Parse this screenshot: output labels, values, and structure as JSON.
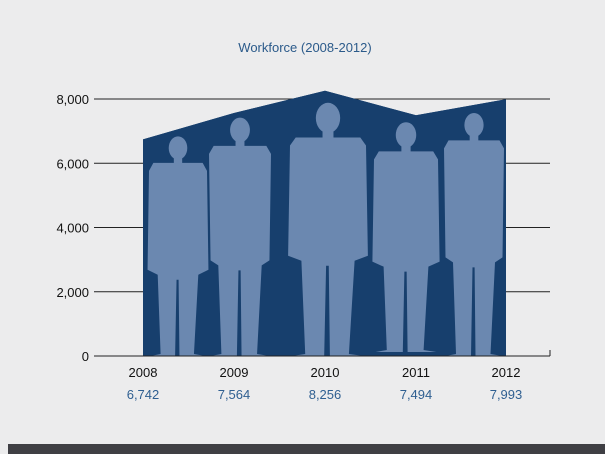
{
  "chart_data": {
    "type": "area",
    "title": "Workforce (2008-2012)",
    "xlabel": "",
    "ylabel": "",
    "categories": [
      "2008",
      "2009",
      "2010",
      "2011",
      "2012"
    ],
    "values": [
      6742,
      7564,
      8256,
      7494,
      7993
    ],
    "value_labels": [
      "6,742",
      "7,564",
      "8,256",
      "7,494",
      "7,993"
    ],
    "ylim": [
      0,
      8000
    ],
    "yticks": [
      0,
      2000,
      4000,
      6000,
      8000
    ],
    "ytick_labels": [
      "0",
      "2,000",
      "4,000",
      "6,000",
      "8,000"
    ],
    "grid": true,
    "legend": "none",
    "colors": {
      "area": "#173f6d",
      "silhouette": "#6b88b0",
      "title": "#2b5a8a",
      "value_label": "#2f5f91",
      "axis": "#222222"
    }
  }
}
